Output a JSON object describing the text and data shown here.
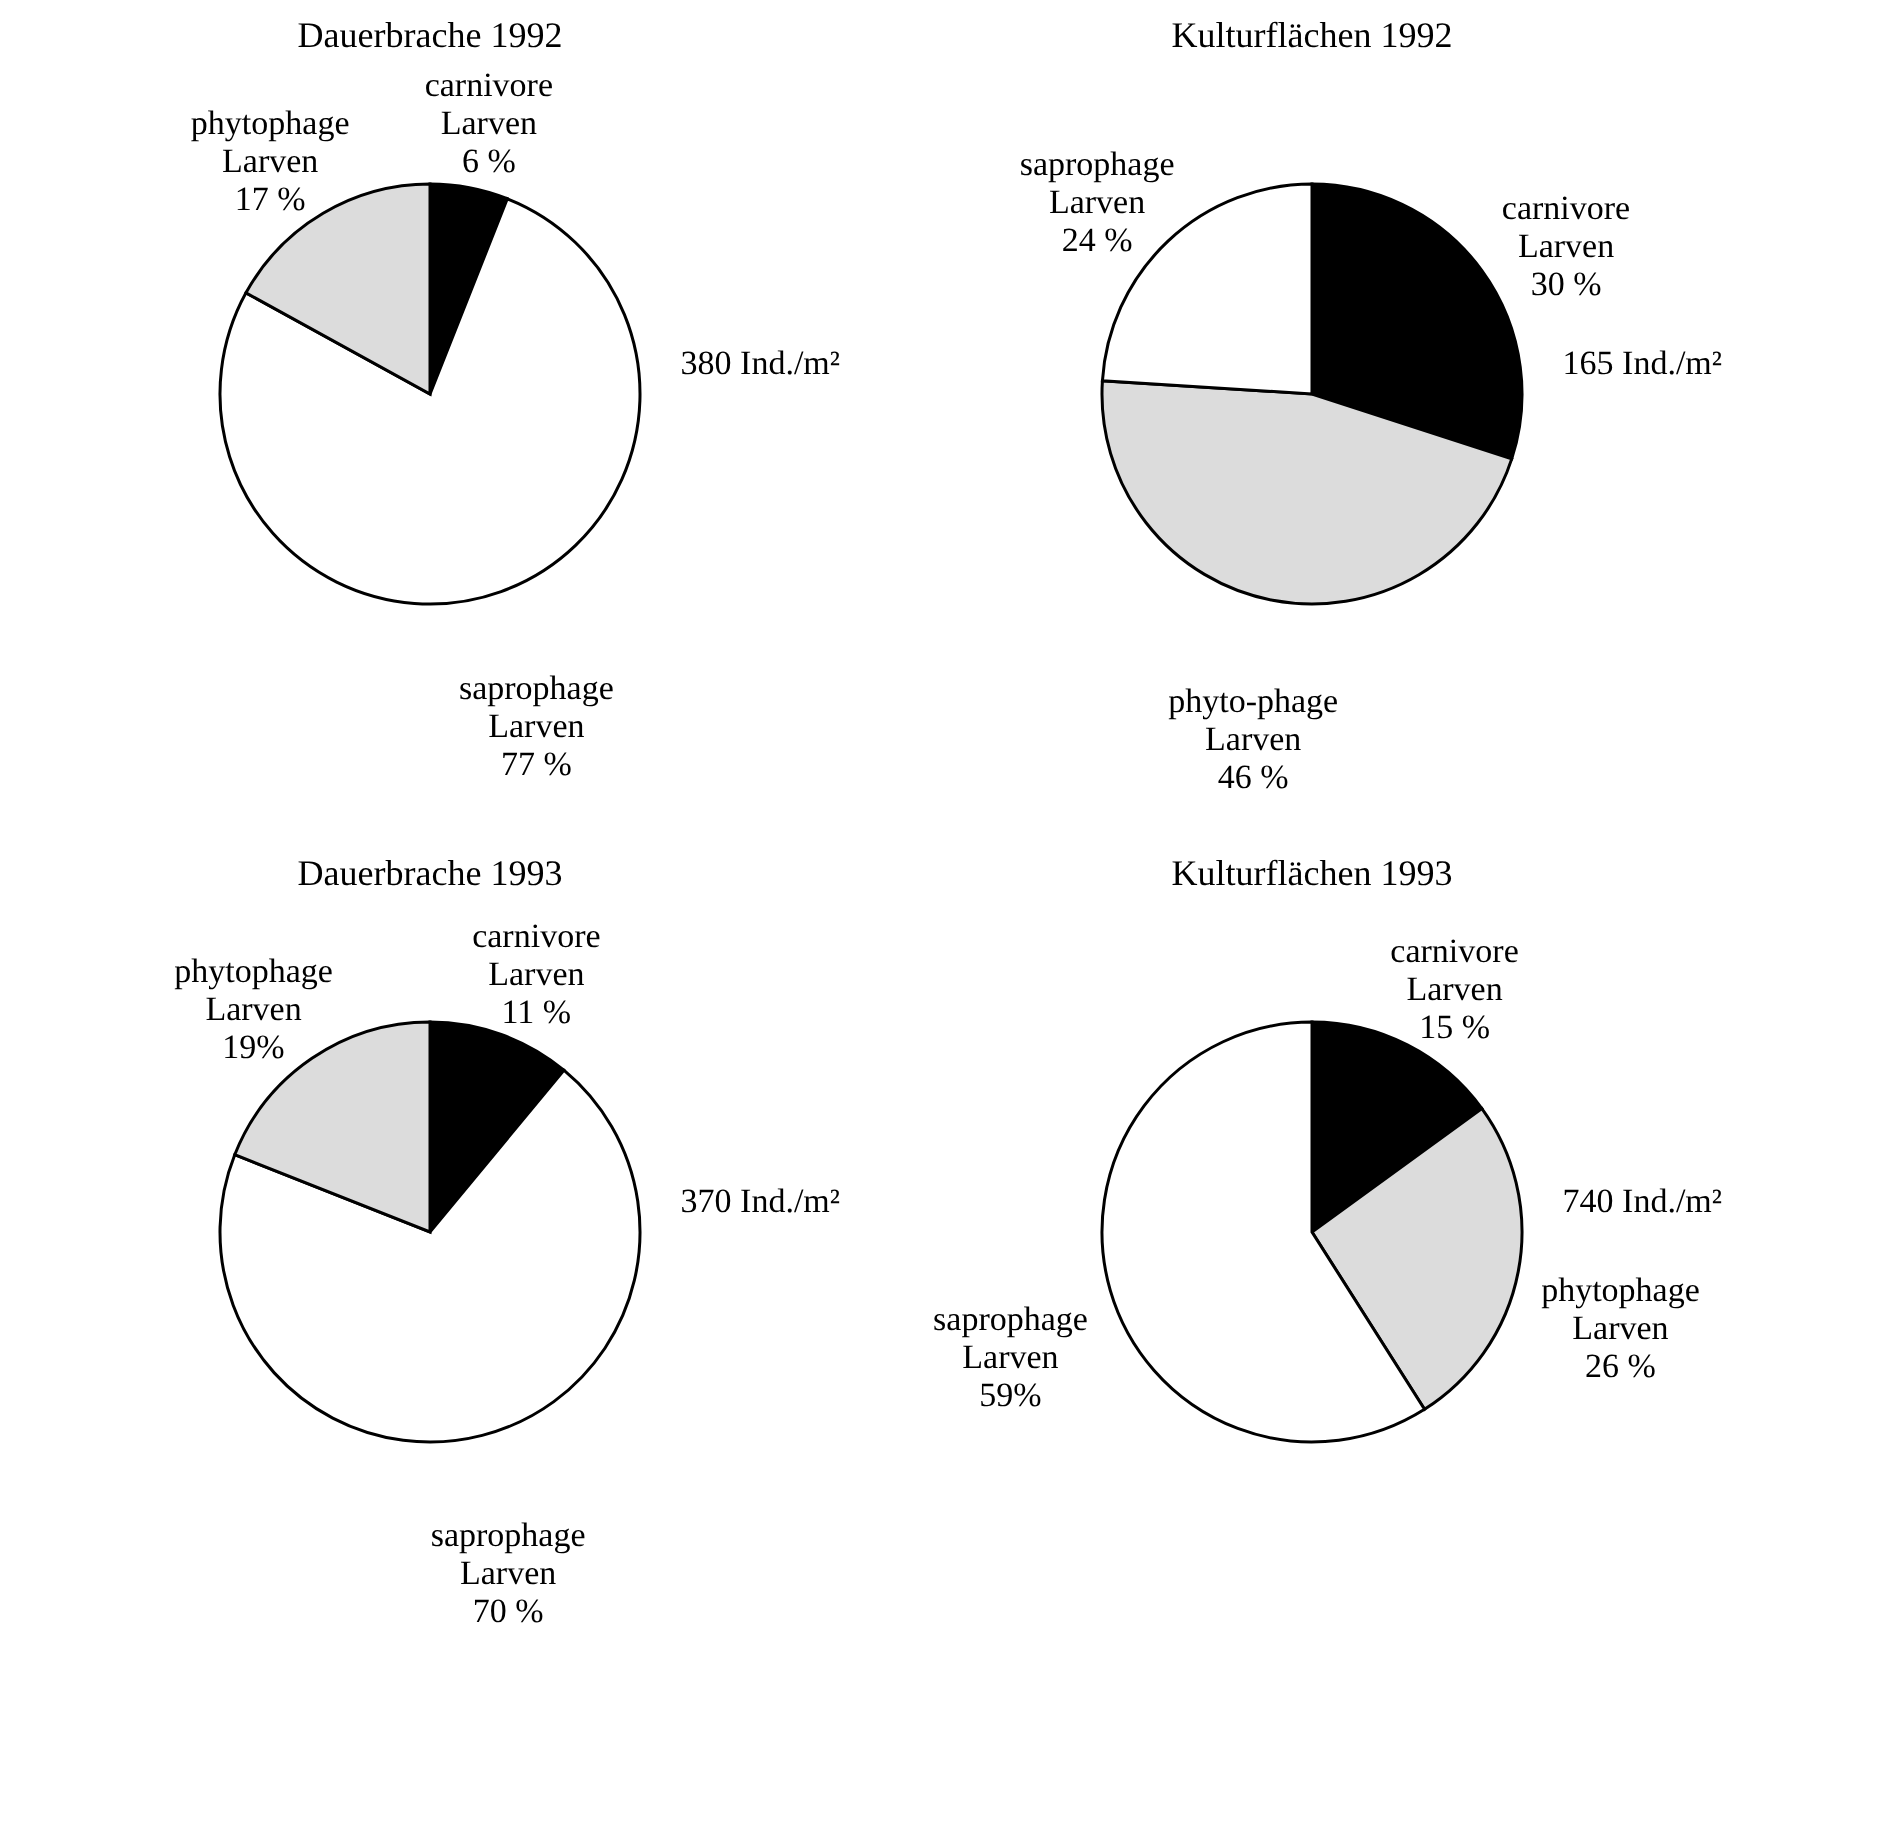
{
  "chart_data": [
    {
      "type": "pie",
      "title": "Dauerbrache 1992",
      "categories": [
        "carnivore Larven",
        "saprophage Larven",
        "phytophage Larven"
      ],
      "values": [
        6,
        77,
        17
      ],
      "value_labels": [
        "6 %",
        "77 %",
        "17 %"
      ],
      "colors": [
        "#000000",
        "#ffffff",
        "#dcdcdc"
      ],
      "annotations": [
        "380 Ind./m²"
      ]
    },
    {
      "type": "pie",
      "title": "Kulturflächen 1992",
      "categories": [
        "carnivore Larven",
        "phyto-phage Larven",
        "saprophage Larven"
      ],
      "values": [
        30,
        46,
        24
      ],
      "value_labels": [
        "30 %",
        "46 %",
        "24 %"
      ],
      "colors": [
        "#000000",
        "#dcdcdc",
        "#ffffff"
      ],
      "annotations": [
        "165 Ind./m²"
      ]
    },
    {
      "type": "pie",
      "title": "Dauerbrache 1993",
      "categories": [
        "carnivore Larven",
        "saprophage Larven",
        "phytophage Larven"
      ],
      "values": [
        11,
        70,
        19
      ],
      "value_labels": [
        "11 %",
        "70 %",
        "19%"
      ],
      "colors": [
        "#000000",
        "#ffffff",
        "#dcdcdc"
      ],
      "annotations": [
        "370 Ind./m²"
      ]
    },
    {
      "type": "pie",
      "title": "Kulturflächen 1993",
      "categories": [
        "carnivore Larven",
        "phytophage Larven",
        "saprophage Larven"
      ],
      "values": [
        15,
        26,
        59
      ],
      "value_labels": [
        "15 %",
        "26 %",
        "59%"
      ],
      "colors": [
        "#000000",
        "#dcdcdc",
        "#ffffff"
      ],
      "annotations": [
        "740 Ind./m²"
      ]
    }
  ]
}
